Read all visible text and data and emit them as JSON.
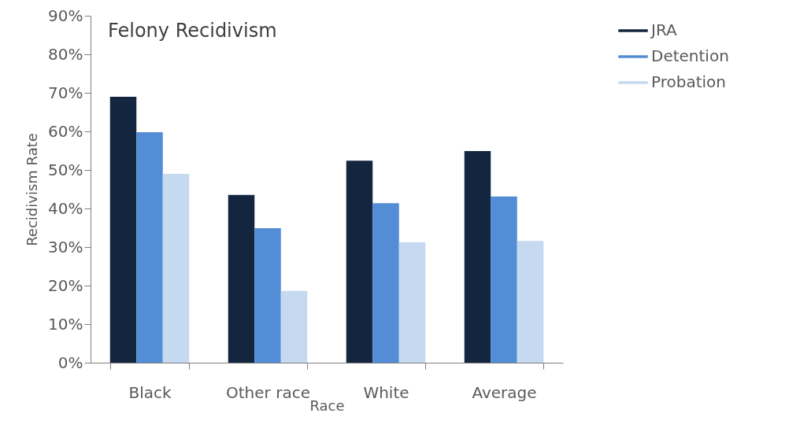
{
  "chart_data": {
    "type": "bar",
    "title": "Felony Recidivism",
    "xlabel": "Race",
    "ylabel": "Recidivism Rate",
    "categories": [
      "Black",
      "Other race",
      "White",
      "Average"
    ],
    "series": [
      {
        "name": "JRA",
        "color": "#14253f",
        "values": [
          69.0,
          43.5,
          52.4,
          54.9
        ]
      },
      {
        "name": "Detention",
        "color": "#538dd5",
        "values": [
          59.8,
          34.9,
          41.4,
          43.1
        ]
      },
      {
        "name": "Probation",
        "color": "#c5d9f1",
        "values": [
          49.0,
          18.6,
          31.2,
          31.6
        ]
      }
    ],
    "ylim": [
      0,
      90
    ],
    "yticks": [
      {
        "value": 0,
        "label": "0%"
      },
      {
        "value": 10,
        "label": "10%"
      },
      {
        "value": 20,
        "label": "20%"
      },
      {
        "value": 30,
        "label": "30%"
      },
      {
        "value": 40,
        "label": "40%"
      },
      {
        "value": 50,
        "label": "50%"
      },
      {
        "value": 60,
        "label": "60%"
      },
      {
        "value": 70,
        "label": "70%"
      },
      {
        "value": 80,
        "label": "80%"
      },
      {
        "value": 90,
        "label": "90%"
      }
    ],
    "grid": false,
    "legend": "right"
  }
}
